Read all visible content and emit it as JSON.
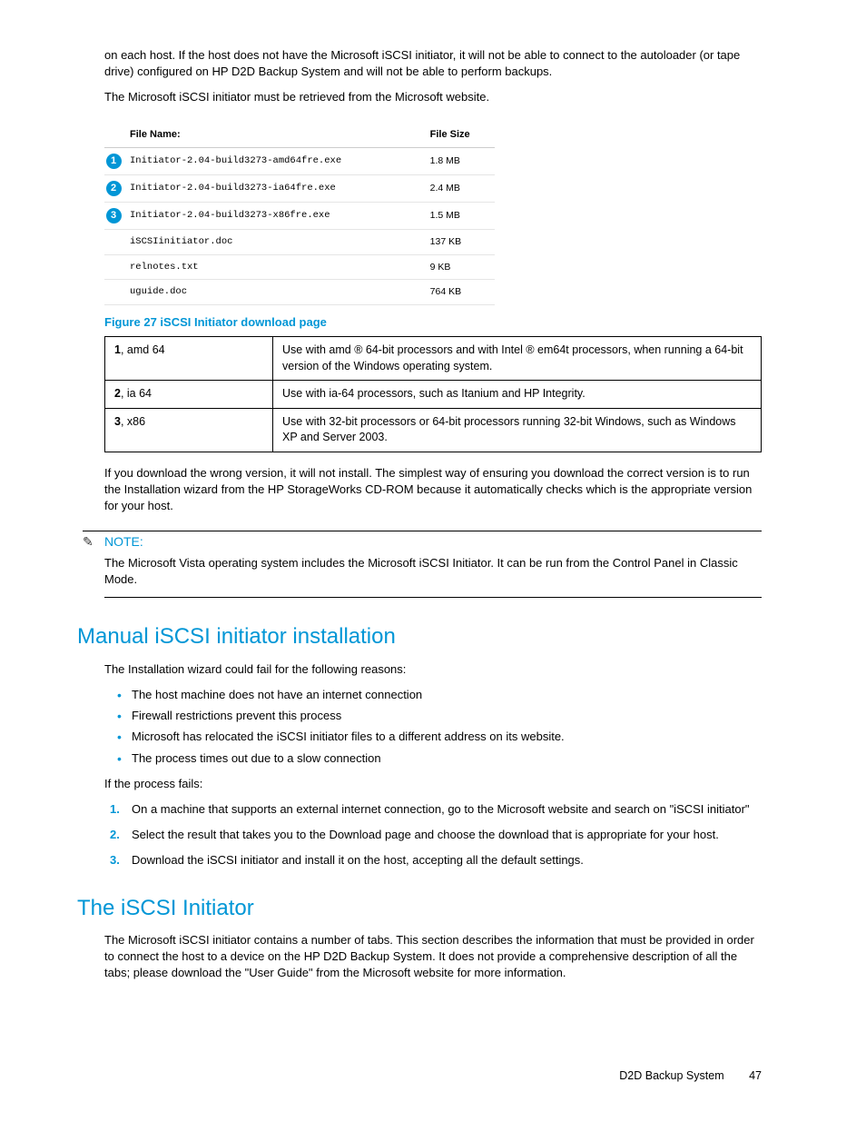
{
  "intro": {
    "p1": "on each host. If the host does not have the Microsoft iSCSI initiator, it will not be able to connect to the autoloader (or tape drive) configured on HP D2D Backup System and will not be able to perform backups.",
    "p2": "The Microsoft iSCSI initiator must be retrieved from the Microsoft website."
  },
  "file_table": {
    "headers": {
      "name": "File Name:",
      "size": "File Size"
    },
    "rows": [
      {
        "callout": "1",
        "name": "Initiator-2.04-build3273-amd64fre.exe",
        "size": "1.8 MB"
      },
      {
        "callout": "2",
        "name": "Initiator-2.04-build3273-ia64fre.exe",
        "size": "2.4 MB"
      },
      {
        "callout": "3",
        "name": "Initiator-2.04-build3273-x86fre.exe",
        "size": "1.5 MB"
      },
      {
        "callout": "",
        "name": "iSCSIinitiator.doc",
        "size": "137 KB"
      },
      {
        "callout": "",
        "name": "relnotes.txt",
        "size": "9 KB"
      },
      {
        "callout": "",
        "name": "uguide.doc",
        "size": "764 KB"
      }
    ]
  },
  "figure_caption": "Figure 27 iSCSI Initiator download page",
  "key_table": {
    "rows": [
      {
        "num": "1",
        "label": ", amd 64",
        "desc": "Use with amd ® 64-bit processors and with Intel ® em64t processors, when running a 64-bit version of the Windows operating system."
      },
      {
        "num": "2",
        "label": ", ia 64",
        "desc": "Use with ia-64 processors, such as Itanium and HP Integrity."
      },
      {
        "num": "3",
        "label": ", x86",
        "desc": "Use with 32-bit processors or 64-bit processors running 32-bit Windows, such as Windows XP and Server 2003."
      }
    ]
  },
  "after_table": "If you download the wrong version, it will not install. The simplest way of ensuring you download the correct version is to run the Installation wizard from the HP StorageWorks CD-ROM because it automatically checks which is the appropriate version for your host.",
  "note": {
    "head": "NOTE:",
    "body": "The Microsoft Vista operating system includes the Microsoft iSCSI Initiator. It can be run from the Control Panel in Classic Mode."
  },
  "section1": {
    "title": "Manual iSCSI initiator installation",
    "p1": "The Installation wizard could fail for the following reasons:",
    "bullets": [
      "The host machine does not have an internet connection",
      "Firewall restrictions prevent this process",
      "Microsoft has relocated the iSCSI initiator files to a different address on its website.",
      "The process times out due to a slow connection"
    ],
    "p2": "If the process fails:",
    "steps": [
      "On a machine that supports an external internet connection, go to the Microsoft website and search on \"iSCSI initiator\"",
      "Select the result that takes you to the Download page and choose the download that is appropriate for your host.",
      "Download the iSCSI initiator and install it on the host, accepting all the default settings."
    ]
  },
  "section2": {
    "title": "The iSCSI Initiator",
    "p1": "The Microsoft iSCSI initiator contains a number of tabs. This section describes the information that must be provided in order to connect the host to a device on the HP D2D Backup System. It does not provide a comprehensive description of all the tabs; please download the \"User Guide\" from the Microsoft website for more information."
  },
  "footer": {
    "product": "D2D Backup System",
    "page": "47"
  },
  "colors": {
    "accent": "#0096d6"
  }
}
